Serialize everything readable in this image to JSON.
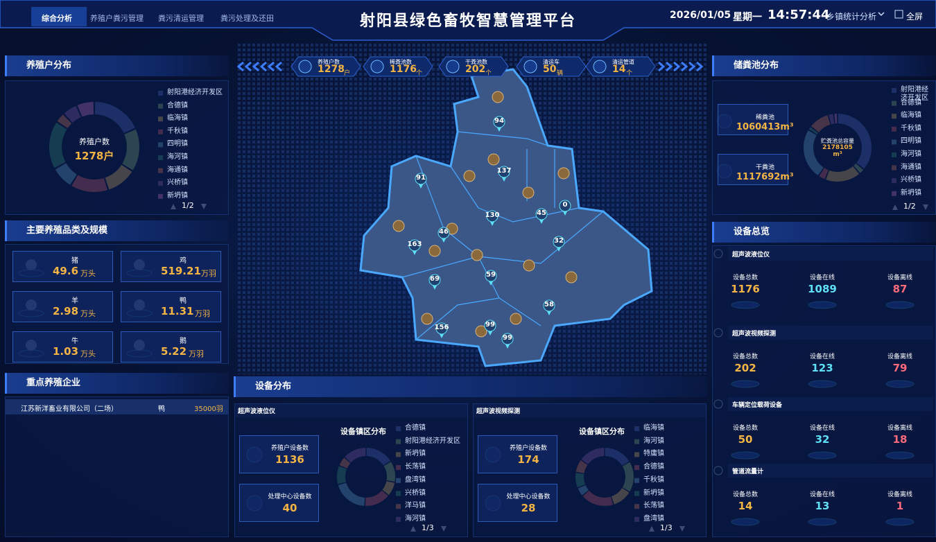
{
  "header": {
    "tabs": [
      "综合分析",
      "养殖户粪污管理",
      "粪污清运管理",
      "粪污处理及还田"
    ],
    "title": "射阳县绿色畜牧智慧管理平台",
    "date": "2026/01/05",
    "weekday": "星期一",
    "time": "14:57:44",
    "menu": "乡镇统计分析",
    "fullscreen": "全屏"
  },
  "farm_distribution": {
    "title": "养殖户分布",
    "center_label": "养殖户数",
    "center_value": "1278户",
    "legend": [
      {
        "name": "射阳港经济开发区",
        "color": "#5470c6"
      },
      {
        "name": "合德镇",
        "color": "#91cc75"
      },
      {
        "name": "临海镇",
        "color": "#fac858"
      },
      {
        "name": "千秋镇",
        "color": "#ee6666"
      },
      {
        "name": "四明镇",
        "color": "#73c0de"
      },
      {
        "name": "海河镇",
        "color": "#3ba272"
      },
      {
        "name": "海通镇",
        "color": "#fc8452"
      },
      {
        "name": "兴桥镇",
        "color": "#9a60b4"
      },
      {
        "name": "新坍镇",
        "color": "#ea7ccc"
      }
    ],
    "values": [
      200,
      170,
      120,
      150,
      90,
      190,
      40,
      60,
      70
    ],
    "pager": "1/2"
  },
  "livestock": {
    "title": "主要养殖品类及规模",
    "items": [
      {
        "name": "猪",
        "value": 49.6,
        "unit": "万头"
      },
      {
        "name": "鸡",
        "value": 519.21,
        "unit": "万羽"
      },
      {
        "name": "羊",
        "value": 2.98,
        "unit": "万头"
      },
      {
        "name": "鸭",
        "value": 11.31,
        "unit": "万羽"
      },
      {
        "name": "牛",
        "value": 1.03,
        "unit": "万头"
      },
      {
        "name": "鹅",
        "value": 5.22,
        "unit": "万羽"
      }
    ]
  },
  "enterprises": {
    "title": "重点养殖企业",
    "rows": [
      [
        "江苏新洋畜业有限公司（二场）",
        "鸭",
        "35000羽"
      ]
    ]
  },
  "summary": [
    {
      "label": "养殖户数",
      "value": 1278,
      "unit": "户"
    },
    {
      "label": "稀粪池数",
      "value": 1176,
      "unit": "个"
    },
    {
      "label": "干粪池数",
      "value": 202,
      "unit": "个"
    },
    {
      "label": "清运车",
      "value": 50,
      "unit": "辆"
    },
    {
      "label": "清运管道",
      "value": 14,
      "unit": "个"
    }
  ],
  "map": {
    "markers": [
      94,
      137,
      91,
      130,
      45,
      0,
      46,
      163,
      32,
      69,
      59,
      58,
      156,
      99,
      99
    ]
  },
  "storage": {
    "title": "储粪池分布",
    "items": [
      {
        "label": "稀粪池",
        "value": "1060413m³"
      },
      {
        "label": "干粪池",
        "value": "1117692m³"
      }
    ],
    "center_label": "贮粪池总容量",
    "center_value": "2178105 m³",
    "legend": [
      {
        "name": "射阳港经济开发区",
        "color": "#5470c6"
      },
      {
        "name": "合德镇",
        "color": "#91cc75"
      },
      {
        "name": "临海镇",
        "color": "#fac858"
      },
      {
        "name": "千秋镇",
        "color": "#ee6666"
      },
      {
        "name": "四明镇",
        "color": "#73c0de"
      },
      {
        "name": "海河镇",
        "color": "#3ba272"
      },
      {
        "name": "海通镇",
        "color": "#fc8452"
      },
      {
        "name": "兴桥镇",
        "color": "#9a60b4"
      },
      {
        "name": "新坍镇",
        "color": "#ea7ccc"
      }
    ],
    "values": [
      400,
      30,
      190,
      40,
      270,
      20,
      110,
      30,
      20
    ],
    "pager": "1/2"
  },
  "devices": {
    "title": "设备总览",
    "groups": [
      {
        "name": "超声波液位仪",
        "stats": [
          {
            "label": "设备总数",
            "value": 1176
          },
          {
            "label": "设备在线",
            "value": 1089
          },
          {
            "label": "设备离线",
            "value": 87
          }
        ]
      },
      {
        "name": "超声波视频探测",
        "stats": [
          {
            "label": "设备总数",
            "value": 202
          },
          {
            "label": "设备在线",
            "value": 123
          },
          {
            "label": "设备离线",
            "value": 79
          }
        ]
      },
      {
        "name": "车辆定位载荷设备",
        "stats": [
          {
            "label": "设备总数",
            "value": 50
          },
          {
            "label": "设备在线",
            "value": 32
          },
          {
            "label": "设备离线",
            "value": 18
          }
        ]
      },
      {
        "name": "管道流量计",
        "stats": [
          {
            "label": "设备总数",
            "value": 14
          },
          {
            "label": "设备在线",
            "value": 13
          },
          {
            "label": "设备离线",
            "value": 1
          }
        ]
      }
    ]
  },
  "device_distribution": {
    "title": "设备分布",
    "panels": [
      {
        "title": "超声波液位仪",
        "stats": [
          {
            "label": "养殖户设备数",
            "value": 1136
          },
          {
            "label": "处理中心设备数",
            "value": 40
          }
        ],
        "chart_title": "设备镇区分布",
        "legend": [
          {
            "name": "合德镇",
            "color": "#5470c6"
          },
          {
            "name": "射阳港经济开发区",
            "color": "#91cc75"
          },
          {
            "name": "新坍镇",
            "color": "#fac858"
          },
          {
            "name": "长荡镇",
            "color": "#ee6666"
          },
          {
            "name": "盘湾镇",
            "color": "#73c0de"
          },
          {
            "name": "兴桥镇",
            "color": "#3ba272"
          },
          {
            "name": "洋马镇",
            "color": "#fc8452"
          },
          {
            "name": "海河镇",
            "color": "#9a60b4"
          }
        ],
        "values": [
          120,
          90,
          60,
          110,
          150,
          80,
          40,
          100
        ],
        "pager": "1/3"
      },
      {
        "title": "超声波视频探测",
        "stats": [
          {
            "label": "养殖户设备数",
            "value": 174
          },
          {
            "label": "处理中心设备数",
            "value": 28
          }
        ],
        "chart_title": "设备镇区分布",
        "legend": [
          {
            "name": "临海镇",
            "color": "#5470c6"
          },
          {
            "name": "海河镇",
            "color": "#91cc75"
          },
          {
            "name": "特庸镇",
            "color": "#fac858"
          },
          {
            "name": "合德镇",
            "color": "#ee6666"
          },
          {
            "name": "千秋镇",
            "color": "#73c0de"
          },
          {
            "name": "新坍镇",
            "color": "#3ba272"
          },
          {
            "name": "长荡镇",
            "color": "#fc8452"
          },
          {
            "name": "盘湾镇",
            "color": "#9a60b4"
          }
        ],
        "values": [
          130,
          140,
          90,
          150,
          40,
          70,
          60,
          120
        ],
        "pager": "1/3"
      }
    ]
  }
}
